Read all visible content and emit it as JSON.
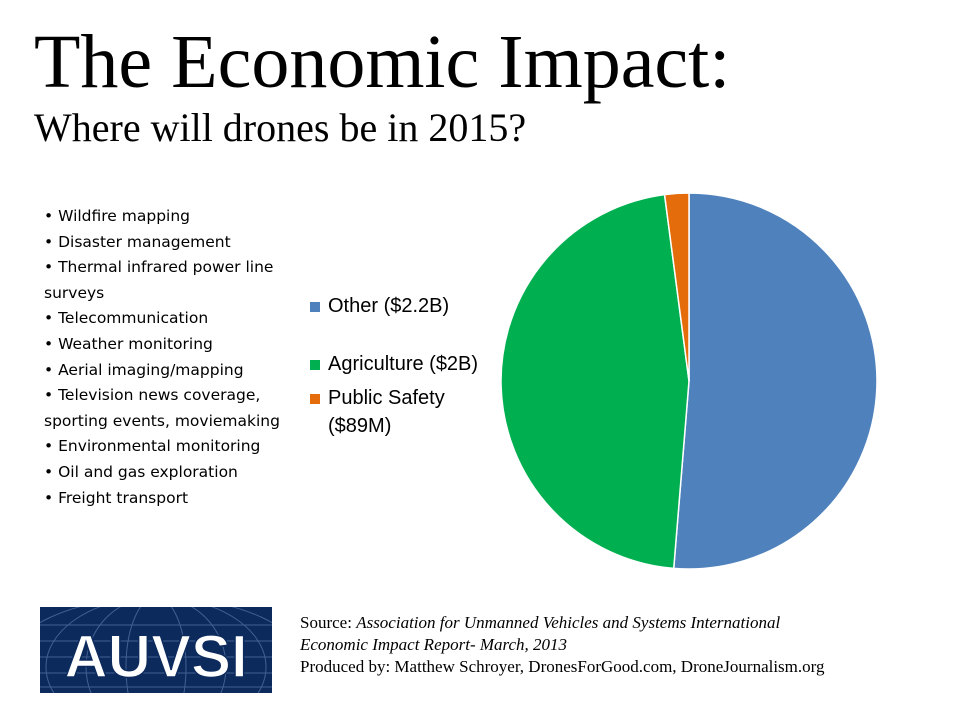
{
  "slide": {
    "title": "The Economic Impact:",
    "subtitle": "Where will drones be in 2015?",
    "bullets": [
      "Wildfire mapping",
      "Disaster management",
      "Thermal infrared power line surveys",
      "Telecommunication",
      "Weather monitoring",
      "Aerial imaging/mapping",
      "Television news coverage, sporting events, moviemaking",
      "Environmental monitoring",
      "Oil and gas exploration",
      "Freight transport"
    ],
    "logo_text": "AUVSI",
    "source_label": "Source: ",
    "source_line1": "Association for Unmanned Vehicles and Systems International",
    "source_line2": "Economic Impact Report- March, 2013",
    "produced_by": "Produced by: Matthew Schroyer, DronesForGood.com, DroneJournalism.org"
  },
  "chart_data": {
    "type": "pie",
    "start": "12 o'clock, clockwise",
    "legend_position": "left",
    "slices": [
      {
        "label": "Other ($2.2B)",
        "value": 2.2,
        "unit": "B",
        "color": "#4f81bd"
      },
      {
        "label": "Agriculture ($2B)",
        "value": 2.0,
        "unit": "B",
        "color": "#00b050"
      },
      {
        "label": "Public Safety ($89M)",
        "value": 0.089,
        "unit": "B",
        "color": "#e46c0a"
      }
    ]
  }
}
